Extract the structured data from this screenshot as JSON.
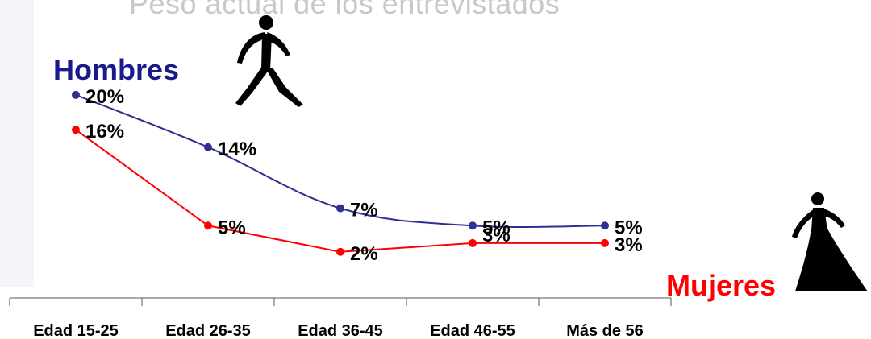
{
  "header": {
    "title": "Peso actual de los entrevistados"
  },
  "icons": {
    "male": "walking-man-icon",
    "female": "woman-in-dress-icon"
  },
  "chart_data": {
    "type": "line",
    "categories": [
      "Edad 15-25",
      "Edad 26-35",
      "Edad 36-45",
      "Edad 46-55",
      "Más de 56"
    ],
    "series": [
      {
        "name": "Hombres",
        "color": "#2e3192",
        "values": [
          20,
          14,
          7,
          5,
          5
        ],
        "labels": [
          "20%",
          "14%",
          "7%",
          "5%",
          "5%"
        ]
      },
      {
        "name": "Mujeres",
        "color": "#ff0000",
        "values": [
          16,
          5,
          2,
          3,
          3
        ],
        "labels": [
          "16%",
          "5%",
          "2%",
          "3%",
          "3%"
        ]
      }
    ],
    "unit": "%",
    "ylim": [
      0,
      22
    ],
    "grid": false,
    "legend": "inline"
  }
}
